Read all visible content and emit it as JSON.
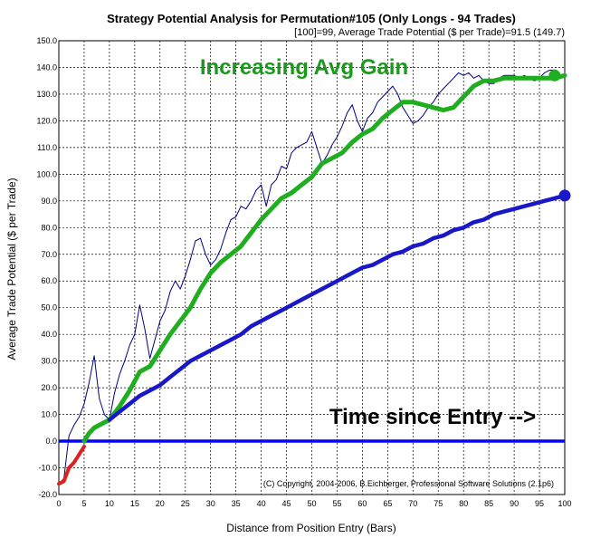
{
  "chart_data": {
    "type": "line",
    "title": "Strategy Potential Analysis for Permutation#105 (Only Longs - 94 Trades)",
    "subtitle": "[100]=99,   Average Trade Potential ($ per Trade)=91.5 (149.7)",
    "xlabel": "Distance from Position Entry (Bars)",
    "ylabel": "Average Trade Potential ($ per Trade)",
    "xlim": [
      0,
      100
    ],
    "ylim": [
      -20,
      150
    ],
    "x_ticks": [
      "0",
      "5",
      "10",
      "15",
      "20",
      "25",
      "30",
      "35",
      "40",
      "45",
      "50",
      "55",
      "60",
      "65",
      "70",
      "75",
      "80",
      "85",
      "90",
      "95",
      "100"
    ],
    "y_ticks": [
      "-20.0",
      "-10.0",
      "0.0",
      "10.0",
      "20.0",
      "30.0",
      "40.0",
      "50.0",
      "60.0",
      "70.0",
      "80.0",
      "90.0",
      "100.0",
      "110.0",
      "120.0",
      "130.0",
      "140.0",
      "150.0"
    ],
    "grid": true,
    "annotations": [
      "Increasing Avg Gain",
      "Time since Entry -->",
      "(C) Copyright, 2004-2006, B.Eichberger, Professional Software Solutions (2.1p6)"
    ],
    "colors": {
      "green": "#1fae1f",
      "blue": "#1818c8",
      "navy": "#000080",
      "red": "#e02020",
      "baseline": "#0000ff"
    },
    "series": [
      {
        "key": "raw_potential",
        "color": "#000080",
        "x": [
          0,
          1,
          2,
          3,
          4,
          5,
          6,
          7,
          8,
          9,
          10,
          11,
          12,
          13,
          14,
          15,
          16,
          17,
          18,
          19,
          20,
          21,
          22,
          23,
          24,
          25,
          26,
          27,
          28,
          29,
          30,
          31,
          32,
          33,
          34,
          35,
          36,
          37,
          38,
          39,
          40,
          41,
          42,
          43,
          44,
          45,
          46,
          47,
          48,
          49,
          50,
          51,
          52,
          53,
          54,
          55,
          56,
          57,
          58,
          59,
          60,
          61,
          62,
          63,
          64,
          65,
          66,
          67,
          68,
          69,
          70,
          71,
          72,
          73,
          74,
          75,
          76,
          77,
          78,
          79,
          80,
          81,
          82,
          83,
          84,
          85,
          86,
          87,
          88,
          89,
          90,
          91,
          92,
          93,
          94,
          95,
          96,
          97,
          98,
          99,
          100
        ],
        "y": [
          -16,
          -14,
          2,
          6,
          9,
          14,
          22,
          32,
          16,
          10,
          8,
          18,
          25,
          30,
          36,
          40,
          51,
          42,
          31,
          38,
          45,
          49,
          56,
          60,
          57,
          62,
          68,
          75,
          76,
          70,
          66,
          68,
          72,
          78,
          83,
          84,
          88,
          87,
          90,
          94,
          96,
          88,
          96,
          98,
          103,
          102,
          108,
          110,
          111,
          112,
          116,
          110,
          104,
          107,
          111,
          114,
          118,
          123,
          126,
          120,
          116,
          121,
          123,
          127,
          129,
          131,
          133,
          130,
          125,
          122,
          119,
          120,
          122,
          125,
          127,
          130,
          132,
          134,
          136,
          138,
          137,
          138,
          136,
          137,
          135,
          134,
          134,
          136,
          137,
          137,
          137,
          136,
          137,
          136,
          135,
          136,
          138,
          139,
          139,
          137,
          137
        ]
      },
      {
        "key": "smoothed_potential",
        "color": "#1fae1f",
        "x": [
          5,
          6,
          7,
          8,
          9,
          10,
          12,
          14,
          16,
          18,
          20,
          22,
          24,
          26,
          28,
          30,
          32,
          34,
          36,
          38,
          40,
          42,
          44,
          46,
          48,
          50,
          52,
          54,
          56,
          58,
          60,
          62,
          64,
          66,
          68,
          70,
          72,
          74,
          76,
          78,
          80,
          82,
          84,
          86,
          88,
          90,
          92,
          94,
          96,
          98,
          100
        ],
        "y": [
          0,
          3,
          5,
          6,
          7,
          8,
          13,
          19,
          26,
          28,
          34,
          40,
          45,
          50,
          57,
          63,
          67,
          70,
          73,
          78,
          83,
          87,
          91,
          93,
          96,
          99,
          104,
          106,
          108,
          112,
          115,
          117,
          121,
          124,
          127,
          127,
          126,
          125,
          124,
          125,
          129,
          133,
          135,
          135,
          136,
          136,
          136,
          136,
          136,
          136,
          137
        ]
      },
      {
        "key": "avg_trade_potential",
        "color": "#1818c8",
        "x": [
          10,
          12,
          14,
          16,
          18,
          20,
          22,
          24,
          26,
          28,
          30,
          32,
          34,
          36,
          38,
          40,
          42,
          44,
          46,
          48,
          50,
          52,
          54,
          56,
          58,
          60,
          62,
          64,
          66,
          68,
          70,
          72,
          74,
          76,
          78,
          80,
          82,
          84,
          86,
          88,
          90,
          92,
          94,
          96,
          98,
          100
        ],
        "y": [
          8,
          11,
          14,
          17,
          19,
          21,
          24,
          27,
          30,
          32,
          34,
          36,
          38,
          40,
          43,
          45,
          47,
          49,
          51,
          53,
          55,
          57,
          59,
          61,
          63,
          65,
          66,
          68,
          70,
          71,
          73,
          74,
          76,
          77,
          79,
          80,
          82,
          83,
          85,
          86,
          87,
          88,
          89,
          90,
          91,
          92
        ]
      },
      {
        "key": "initial_drawdown",
        "color": "#e02020",
        "x": [
          0,
          1,
          2,
          3,
          4,
          5
        ],
        "y": [
          -16,
          -15,
          -10,
          -8,
          -5,
          -2
        ]
      }
    ],
    "endpoints": [
      {
        "series": "smoothed_potential",
        "x": 98,
        "y": 137
      },
      {
        "series": "avg_trade_potential",
        "x": 100,
        "y": 92
      }
    ],
    "baseline": {
      "y": 0
    }
  }
}
